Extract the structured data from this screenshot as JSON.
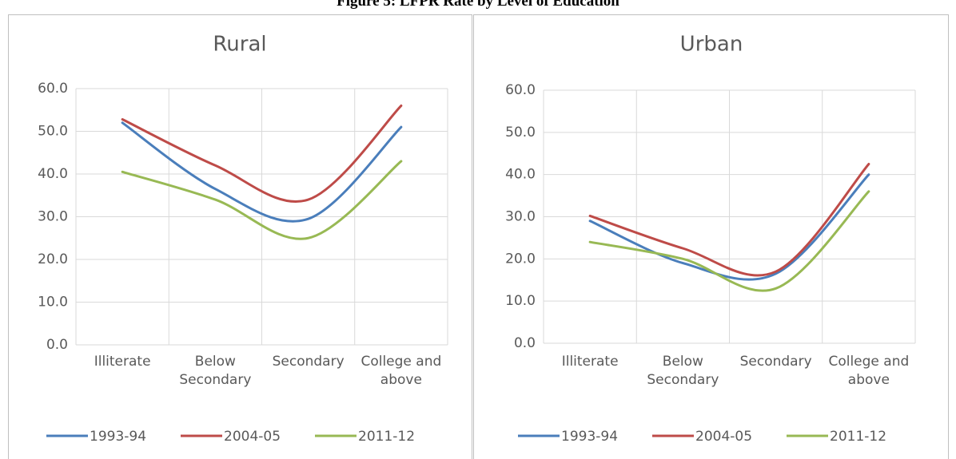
{
  "figure_title": "Figure 5: LFPR Rate by Level of Education",
  "chart_data": [
    {
      "type": "line",
      "title": "Rural",
      "categories": [
        "Illiterate",
        "Below Secondary",
        "Secondary",
        "College and above"
      ],
      "series": [
        {
          "name": "1993-94",
          "color": "#4a7ebb",
          "values": [
            52,
            36.5,
            29.5,
            51
          ]
        },
        {
          "name": "2004-05",
          "color": "#be4b48",
          "values": [
            52.8,
            42,
            34,
            56
          ]
        },
        {
          "name": "2011-12",
          "color": "#98b954",
          "values": [
            40.5,
            34,
            25,
            43
          ]
        }
      ],
      "ylim": [
        0,
        60
      ],
      "yticks": [
        {
          "value": 0,
          "label": "0.0"
        },
        {
          "value": 10,
          "label": "10.0"
        },
        {
          "value": 20,
          "label": "20.0"
        },
        {
          "value": 30,
          "label": "30.0"
        },
        {
          "value": 40,
          "label": "40.0"
        },
        {
          "value": 50,
          "label": "50.0"
        },
        {
          "value": 60,
          "label": "60.0"
        }
      ],
      "grid": true,
      "legend": "bottom"
    },
    {
      "type": "line",
      "title": "Urban",
      "categories": [
        "Illiterate",
        "Below Secondary",
        "Secondary",
        "College and above"
      ],
      "series": [
        {
          "name": "1993-94",
          "color": "#4a7ebb",
          "values": [
            29,
            19,
            16.5,
            40
          ]
        },
        {
          "name": "2004-05",
          "color": "#be4b48",
          "values": [
            30.2,
            22.5,
            17,
            42.5
          ]
        },
        {
          "name": "2011-12",
          "color": "#98b954",
          "values": [
            24,
            20,
            13,
            36
          ]
        }
      ],
      "ylim": [
        0,
        60
      ],
      "yticks": [
        {
          "value": 0,
          "label": "0.0"
        },
        {
          "value": 10,
          "label": "10.0"
        },
        {
          "value": 20,
          "label": "20.0"
        },
        {
          "value": 30,
          "label": "30.0"
        },
        {
          "value": 40,
          "label": "40.0"
        },
        {
          "value": 50,
          "label": "50.0"
        },
        {
          "value": 60,
          "label": "60.0"
        }
      ],
      "grid": true,
      "legend": "bottom"
    }
  ]
}
